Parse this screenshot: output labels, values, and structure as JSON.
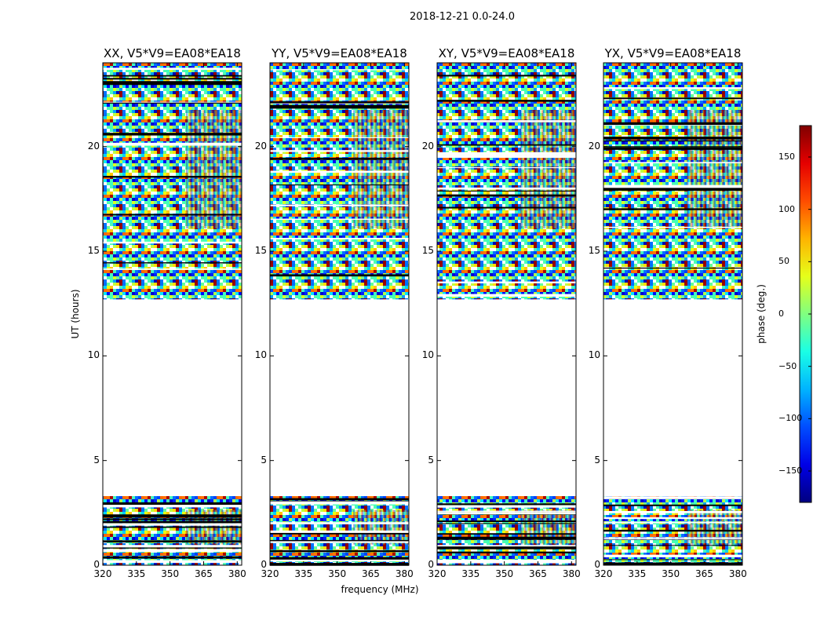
{
  "figure": {
    "suptitle": "2018-12-21 0.0-24.0",
    "ylabel": "UT (hours)",
    "xlabel": "frequency (MHz)",
    "colorbar_label": "phase (deg.)"
  },
  "chart_data": {
    "type": "heatmap",
    "panels": [
      {
        "title": "XX, V5*V9=EA08*EA18"
      },
      {
        "title": "YY, V5*V9=EA08*EA18"
      },
      {
        "title": "XY, V5*V9=EA08*EA18"
      },
      {
        "title": "YX, V5*V9=EA08*EA18"
      }
    ],
    "x_axis": {
      "range": [
        320,
        382
      ],
      "ticks": [
        320,
        335,
        350,
        365,
        380
      ],
      "label": "frequency (MHz)"
    },
    "y_axis": {
      "range": [
        0,
        24
      ],
      "ticks": [
        0,
        5,
        10,
        15,
        20
      ],
      "label": "UT (hours)"
    },
    "data_bands_hours": [
      [
        0,
        3.3
      ],
      [
        12.7,
        24
      ]
    ],
    "colorbar": {
      "range": [
        -180,
        180
      ],
      "ticks": [
        -150,
        -100,
        -50,
        0,
        50,
        100,
        150
      ],
      "tick_labels": [
        "−150",
        "−100",
        "−50",
        "0",
        "50",
        "100",
        "150"
      ],
      "colormap": "jet",
      "label": "phase (deg.)"
    }
  }
}
